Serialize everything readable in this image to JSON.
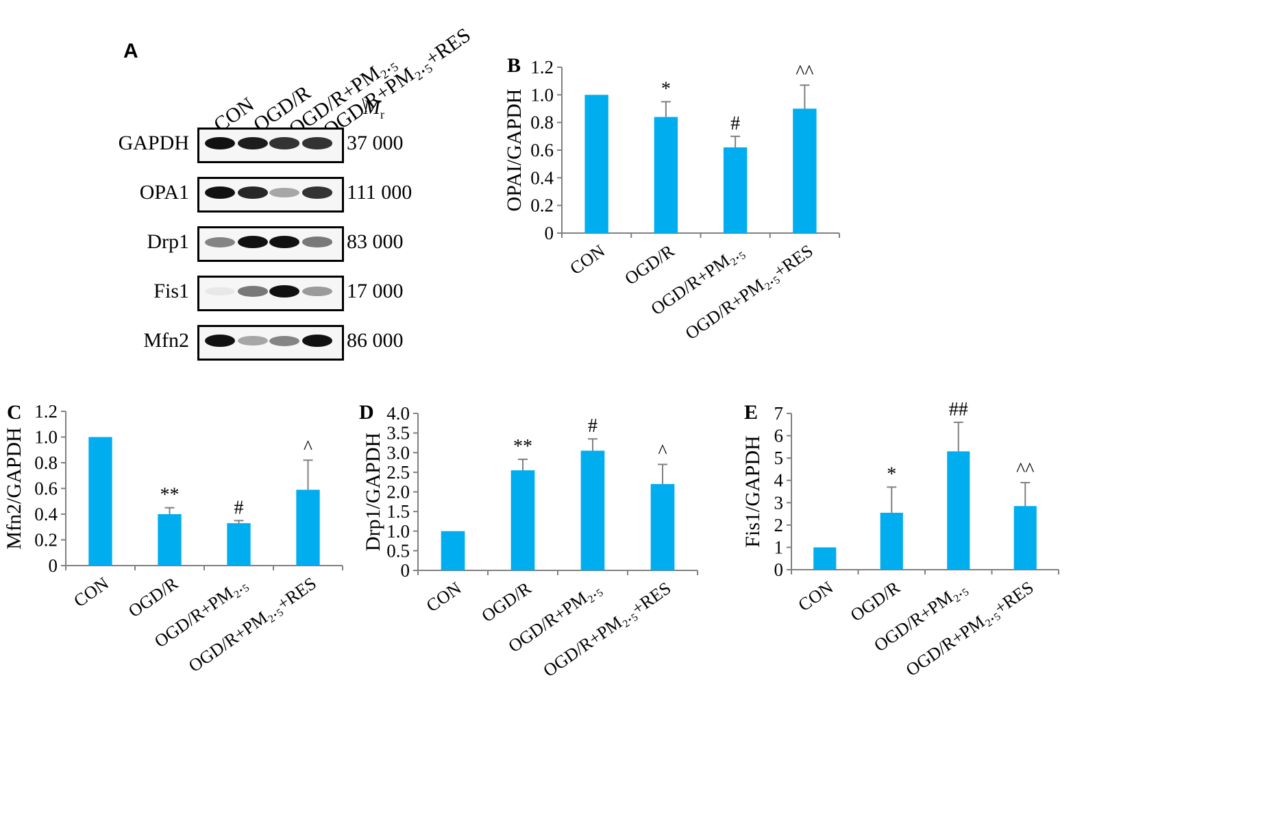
{
  "blot": {
    "letter": "A",
    "lanes": [
      "CON",
      "OGD/R",
      "OGD/R+PM₂.₅",
      "OGD/R+PM₂.₅+RES"
    ],
    "mr_header_main": "M",
    "mr_header_sub": "r",
    "rows": [
      {
        "name": "GAPDH",
        "mw": "37 000",
        "intensities": [
          1.0,
          0.95,
          0.85,
          0.85
        ]
      },
      {
        "name": "OPA1",
        "mw": "111 000",
        "intensities": [
          1.0,
          0.9,
          0.35,
          0.85
        ]
      },
      {
        "name": "Drp1",
        "mw": "83 000",
        "intensities": [
          0.5,
          1.0,
          1.0,
          0.55
        ]
      },
      {
        "name": "Fis1",
        "mw": "17 000",
        "intensities": [
          0.05,
          0.55,
          1.0,
          0.4
        ]
      },
      {
        "name": "Mfn2",
        "mw": "86 000",
        "intensities": [
          1.0,
          0.35,
          0.5,
          1.0
        ]
      }
    ]
  },
  "chart_data": [
    {
      "panel": "B",
      "type": "bar",
      "categories": [
        "CON",
        "OGD/R",
        "OGD/R+PM₂.₅",
        "OGD/R+PM₂.₅+RES"
      ],
      "values": [
        1.0,
        0.84,
        0.62,
        0.9
      ],
      "errors": [
        0.0,
        0.11,
        0.08,
        0.17
      ],
      "annotations": [
        "",
        "*",
        "#",
        "^^"
      ],
      "ylabel": "OPAI/GAPDH",
      "ylim": [
        0,
        1.2
      ],
      "yticks": [
        "0",
        "0.2",
        "0.4",
        "0.6",
        "0.8",
        "1.0",
        "1.2"
      ],
      "grid": false
    },
    {
      "panel": "C",
      "type": "bar",
      "categories": [
        "CON",
        "OGD/R",
        "OGD/R+PM₂.₅",
        "OGD/R+PM₂.₅+RES"
      ],
      "values": [
        1.0,
        0.4,
        0.33,
        0.59
      ],
      "errors": [
        0.0,
        0.05,
        0.02,
        0.23
      ],
      "annotations": [
        "",
        "**",
        "#",
        "^"
      ],
      "ylabel": "Mfn2/GAPDH",
      "ylim": [
        0,
        1.2
      ],
      "yticks": [
        "0",
        "0.2",
        "0.4",
        "0.6",
        "0.8",
        "1.0",
        "1.2"
      ],
      "grid": false
    },
    {
      "panel": "D",
      "type": "bar",
      "categories": [
        "CON",
        "OGD/R",
        "OGD/R+PM₂.₅",
        "OGD/R+PM₂.₅+RES"
      ],
      "values": [
        1.0,
        2.55,
        3.05,
        2.2
      ],
      "errors": [
        0.0,
        0.28,
        0.3,
        0.5
      ],
      "annotations": [
        "",
        "**",
        "#",
        "^"
      ],
      "ylabel": "Drp1/GAPDH",
      "ylim": [
        0,
        4.0
      ],
      "yticks": [
        "0",
        "0.5",
        "1.0",
        "1.5",
        "2.0",
        "2.5",
        "3.0",
        "3.5",
        "4.0"
      ],
      "grid": false
    },
    {
      "panel": "E",
      "type": "bar",
      "categories": [
        "CON",
        "OGD/R",
        "OGD/R+PM₂.₅",
        "OGD/R+PM₂.₅+RES"
      ],
      "values": [
        1.0,
        2.55,
        5.3,
        2.85
      ],
      "errors": [
        0.0,
        1.15,
        1.3,
        1.05
      ],
      "annotations": [
        "",
        "*",
        "##",
        "^^"
      ],
      "ylabel": "Fis1/GAPDH",
      "ylim": [
        0,
        7
      ],
      "yticks": [
        "0",
        "1",
        "2",
        "3",
        "4",
        "5",
        "6",
        "7"
      ],
      "grid": false
    }
  ],
  "colors": {
    "bar": "#00aeef",
    "axis": "#7f7f7f",
    "text": "#000000"
  }
}
